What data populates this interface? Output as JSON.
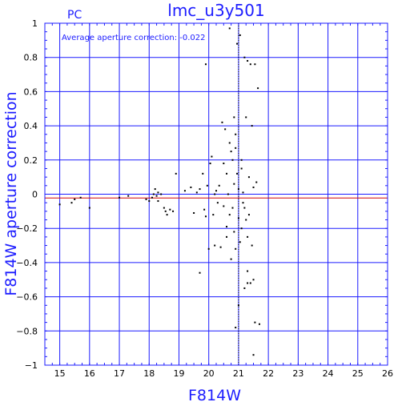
{
  "chart_data": {
    "type": "scatter",
    "title": "lmc_u3y501",
    "corner_label": "PC",
    "annotation": "Average aperture correction: -0.022",
    "xlabel": "F814W",
    "ylabel": "F814W aperture correction",
    "xlim": [
      14.5,
      26
    ],
    "ylim": [
      -1,
      1
    ],
    "xticks": [
      15,
      16,
      17,
      18,
      19,
      20,
      21,
      22,
      23,
      24,
      25,
      26
    ],
    "yticks": [
      -1,
      -0.8,
      -0.6,
      -0.4,
      -0.2,
      0,
      0.2,
      0.4,
      0.6,
      0.8,
      1
    ],
    "ytick_labels": [
      "−1",
      "−0.8",
      "−0.6",
      "−0.4",
      "−0.2",
      "0",
      "0.2",
      "0.4",
      "0.6",
      "0.8",
      "1"
    ],
    "grid": true,
    "reference_lines": [
      {
        "y": 0,
        "color": "#1c1cff"
      },
      {
        "y": -0.022,
        "color": "#d40000"
      }
    ],
    "vertical_line": {
      "x": 21.0
    },
    "colors": {
      "axes": "#1c1cff",
      "grid": "#1c1cff",
      "points": "#000000",
      "average_line": "#d40000"
    },
    "points": [
      [
        15.0,
        -0.06
      ],
      [
        15.4,
        -0.05
      ],
      [
        15.5,
        -0.03
      ],
      [
        15.7,
        -0.02
      ],
      [
        16.0,
        -0.08
      ],
      [
        17.0,
        -0.02
      ],
      [
        17.3,
        -0.01
      ],
      [
        17.9,
        -0.03
      ],
      [
        18.0,
        -0.04
      ],
      [
        18.1,
        -0.02
      ],
      [
        18.15,
        0.0
      ],
      [
        18.2,
        0.03
      ],
      [
        18.25,
        -0.01
      ],
      [
        18.3,
        0.01
      ],
      [
        18.4,
        0.0
      ],
      [
        18.5,
        -0.08
      ],
      [
        18.55,
        -0.1
      ],
      [
        18.6,
        -0.12
      ],
      [
        18.7,
        -0.09
      ],
      [
        18.8,
        -0.1
      ],
      [
        18.9,
        0.12
      ],
      [
        18.3,
        -0.04
      ],
      [
        19.2,
        0.02
      ],
      [
        19.4,
        0.04
      ],
      [
        19.5,
        -0.11
      ],
      [
        19.6,
        0.01
      ],
      [
        19.7,
        0.03
      ],
      [
        19.8,
        0.12
      ],
      [
        19.85,
        -0.09
      ],
      [
        19.9,
        -0.13
      ],
      [
        19.95,
        0.05
      ],
      [
        20.0,
        -0.32
      ],
      [
        20.05,
        0.18
      ],
      [
        20.1,
        0.22
      ],
      [
        20.15,
        -0.12
      ],
      [
        20.2,
        -0.3
      ],
      [
        20.25,
        0.02
      ],
      [
        20.3,
        -0.05
      ],
      [
        20.35,
        0.05
      ],
      [
        20.4,
        -0.31
      ],
      [
        20.45,
        0.42
      ],
      [
        20.5,
        0.18
      ],
      [
        20.5,
        -0.07
      ],
      [
        20.55,
        0.38
      ],
      [
        20.6,
        0.12
      ],
      [
        20.6,
        -0.19
      ],
      [
        20.65,
        0.0
      ],
      [
        20.7,
        0.3
      ],
      [
        20.7,
        -0.12
      ],
      [
        20.75,
        0.25
      ],
      [
        20.75,
        -0.38
      ],
      [
        20.8,
        0.2
      ],
      [
        20.8,
        -0.08
      ],
      [
        20.85,
        0.45
      ],
      [
        20.85,
        0.06
      ],
      [
        20.9,
        -0.32
      ],
      [
        20.9,
        0.35
      ],
      [
        20.95,
        0.88
      ],
      [
        20.95,
        0.12
      ],
      [
        21.0,
        -0.14
      ],
      [
        21.0,
        0.03
      ],
      [
        21.05,
        -0.28
      ],
      [
        21.05,
        0.93
      ],
      [
        21.1,
        -0.2
      ],
      [
        21.1,
        0.15
      ],
      [
        21.15,
        0.01
      ],
      [
        21.15,
        -0.05
      ],
      [
        21.2,
        0.8
      ],
      [
        21.2,
        -0.08
      ],
      [
        21.25,
        0.45
      ],
      [
        21.25,
        -0.15
      ],
      [
        21.3,
        0.78
      ],
      [
        21.3,
        -0.25
      ],
      [
        21.35,
        0.1
      ],
      [
        21.35,
        -0.12
      ],
      [
        21.4,
        -0.52
      ],
      [
        21.4,
        0.76
      ],
      [
        21.45,
        0.4
      ],
      [
        21.45,
        -0.3
      ],
      [
        21.5,
        -0.5
      ],
      [
        21.5,
        0.04
      ],
      [
        21.55,
        -0.75
      ],
      [
        21.55,
        0.76
      ],
      [
        21.6,
        0.07
      ],
      [
        21.65,
        0.62
      ],
      [
        21.7,
        -0.76
      ],
      [
        21.5,
        -0.94
      ],
      [
        20.9,
        -0.78
      ],
      [
        21.0,
        -0.65
      ],
      [
        20.7,
        0.97
      ],
      [
        21.3,
        -0.52
      ],
      [
        21.2,
        -0.55
      ],
      [
        19.7,
        -0.46
      ],
      [
        19.9,
        0.76
      ],
      [
        20.6,
        -0.25
      ],
      [
        20.85,
        -0.22
      ],
      [
        21.1,
        0.2
      ],
      [
        21.3,
        -0.45
      ],
      [
        20.2,
        0.0
      ],
      [
        20.9,
        0.27
      ]
    ]
  }
}
